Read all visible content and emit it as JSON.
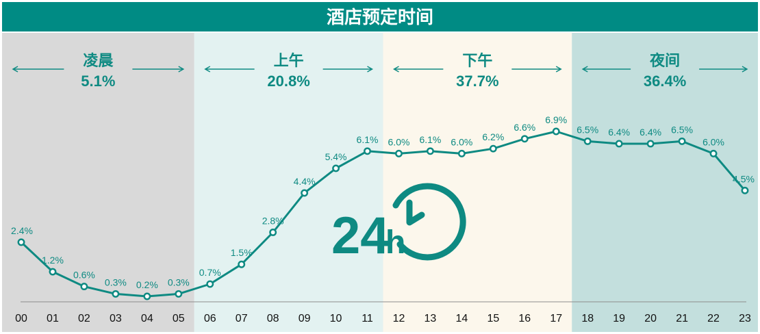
{
  "colors": {
    "accent": "#0e8a82",
    "title_bg": "#008b84",
    "band_night_early": "#d9d9d9",
    "band_morning": "#e3f2f1",
    "band_afternoon": "#fcf7ec",
    "band_evening": "#c3dfdd"
  },
  "logo": {
    "icon": "24h-clock-icon",
    "number": "24",
    "unit": "h"
  },
  "chart_data": {
    "type": "line",
    "title": "酒店预定时间",
    "categories": [
      "00",
      "01",
      "02",
      "03",
      "04",
      "05",
      "06",
      "07",
      "08",
      "09",
      "10",
      "11",
      "12",
      "13",
      "14",
      "15",
      "16",
      "17",
      "18",
      "19",
      "20",
      "21",
      "22",
      "23"
    ],
    "series": [
      {
        "values": [
          2.4,
          1.2,
          0.6,
          0.3,
          0.2,
          0.3,
          0.7,
          1.5,
          2.8,
          4.4,
          5.4,
          6.1,
          6.0,
          6.1,
          6.0,
          6.2,
          6.6,
          6.9,
          6.5,
          6.4,
          6.4,
          6.5,
          6.0,
          4.5
        ],
        "labels": [
          "2.4%",
          "1.2%",
          "0.6%",
          "0.3%",
          "0.2%",
          "0.3%",
          "0.7%",
          "1.5%",
          "2.8%",
          "4.4%",
          "5.4%",
          "6.1%",
          "6.0%",
          "6.1%",
          "6.0%",
          "6.2%",
          "6.6%",
          "6.9%",
          "6.5%",
          "6.4%",
          "6.4%",
          "6.5%",
          "6.0%",
          "4.5%"
        ]
      }
    ],
    "periods": [
      {
        "name": "凌晨",
        "pct": "5.1%",
        "start": 0,
        "end": 5
      },
      {
        "name": "上午",
        "pct": "20.8%",
        "start": 6,
        "end": 11
      },
      {
        "name": "下午",
        "pct": "37.7%",
        "start": 12,
        "end": 17
      },
      {
        "name": "夜间",
        "pct": "36.4%",
        "start": 18,
        "end": 23
      }
    ],
    "ylim": [
      0,
      8
    ],
    "grid": false,
    "xlabel": "",
    "ylabel": ""
  }
}
